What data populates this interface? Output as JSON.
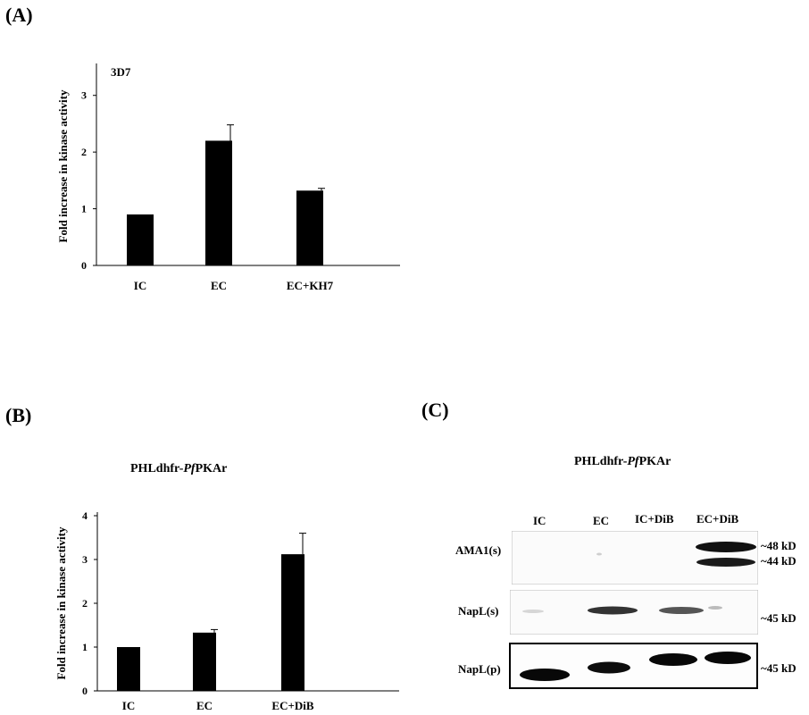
{
  "panels": {
    "a_label": "(A)",
    "b_label": "(B)",
    "c_label": "(C)"
  },
  "chart_data": [
    {
      "type": "bar",
      "panel": "(A)",
      "title": "3D7",
      "ylabel": "Fold increase in kinase activity",
      "categories": [
        "IC",
        "EC",
        "EC+KH7"
      ],
      "values": [
        0.9,
        2.2,
        1.32
      ],
      "errors": [
        0,
        0.28,
        0.04
      ],
      "yticks": [
        "0",
        "1",
        "2",
        "3"
      ],
      "ylim": [
        0,
        3.5
      ],
      "bar_color": "#000000"
    },
    {
      "type": "bar",
      "panel": "(B)",
      "title": "PHLdhfr-PfPKAr",
      "ylabel": "Fold increase in kinase activity",
      "categories": [
        "IC",
        "EC",
        "EC+DiB"
      ],
      "values": [
        1.0,
        1.33,
        3.12
      ],
      "errors": [
        0,
        0.07,
        0.48
      ],
      "yticks": [
        "0",
        "1",
        "2",
        "3",
        "4"
      ],
      "ylim": [
        0,
        4
      ],
      "bar_color": "#000000"
    }
  ],
  "blot": {
    "title_prefix": "PHLdhfr-",
    "title_italic": "Pf",
    "title_suffix": "PKAr",
    "lanes": [
      "IC",
      "EC",
      "IC+DiB",
      "EC+DiB"
    ],
    "rows": [
      {
        "label": "AMA1(s)",
        "kd": [
          "~48 kD",
          "~44 kD"
        ]
      },
      {
        "label": "NapL(s)",
        "kd": [
          "~45 kD"
        ]
      },
      {
        "label": "NapL(p)",
        "kd": [
          "~45 kD"
        ]
      }
    ]
  }
}
